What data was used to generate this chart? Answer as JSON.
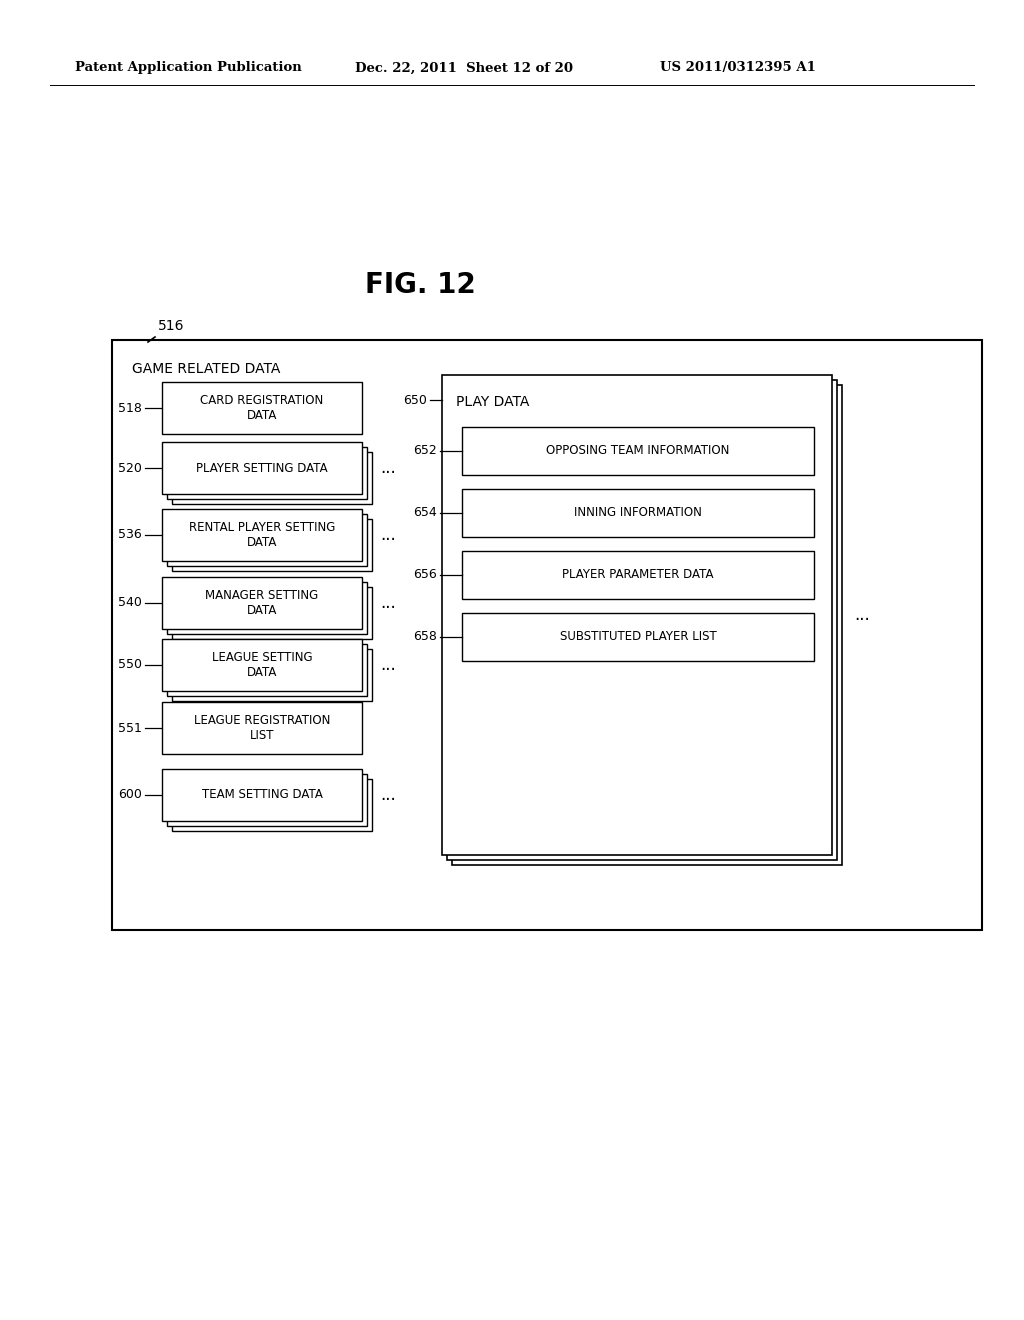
{
  "title": "FIG. 12",
  "header_left": "Patent Application Publication",
  "header_mid": "Dec. 22, 2011  Sheet 12 of 20",
  "header_right": "US 2011/0312395 A1",
  "bg_color": "#ffffff",
  "outer_box_label": "516",
  "outer_box_title": "GAME RELATED DATA",
  "left_items": [
    {
      "label": "518",
      "text": "CARD REGISTRATION\nDATA",
      "has_stack": false,
      "has_dots": false
    },
    {
      "label": "520",
      "text": "PLAYER SETTING DATA",
      "has_stack": true,
      "has_dots": true
    },
    {
      "label": "536",
      "text": "RENTAL PLAYER SETTING\nDATA",
      "has_stack": true,
      "has_dots": true
    },
    {
      "label": "540",
      "text": "MANAGER SETTING\nDATA",
      "has_stack": true,
      "has_dots": true
    },
    {
      "label": "550",
      "text": "LEAGUE SETTING\nDATA",
      "has_stack": true,
      "has_dots": true
    },
    {
      "label": "551",
      "text": "LEAGUE REGISTRATION\nLIST",
      "has_stack": false,
      "has_dots": false
    },
    {
      "label": "600",
      "text": "TEAM SETTING DATA",
      "has_stack": true,
      "has_dots": true
    }
  ],
  "right_group_label": "650",
  "right_group_title": "PLAY DATA",
  "right_items": [
    {
      "label": "652",
      "text": "OPPOSING TEAM INFORMATION"
    },
    {
      "label": "654",
      "text": "INNING INFORMATION"
    },
    {
      "label": "656",
      "text": "PLAYER PARAMETER DATA"
    },
    {
      "label": "658",
      "text": "SUBSTITUTED PLAYER LIST"
    }
  ]
}
